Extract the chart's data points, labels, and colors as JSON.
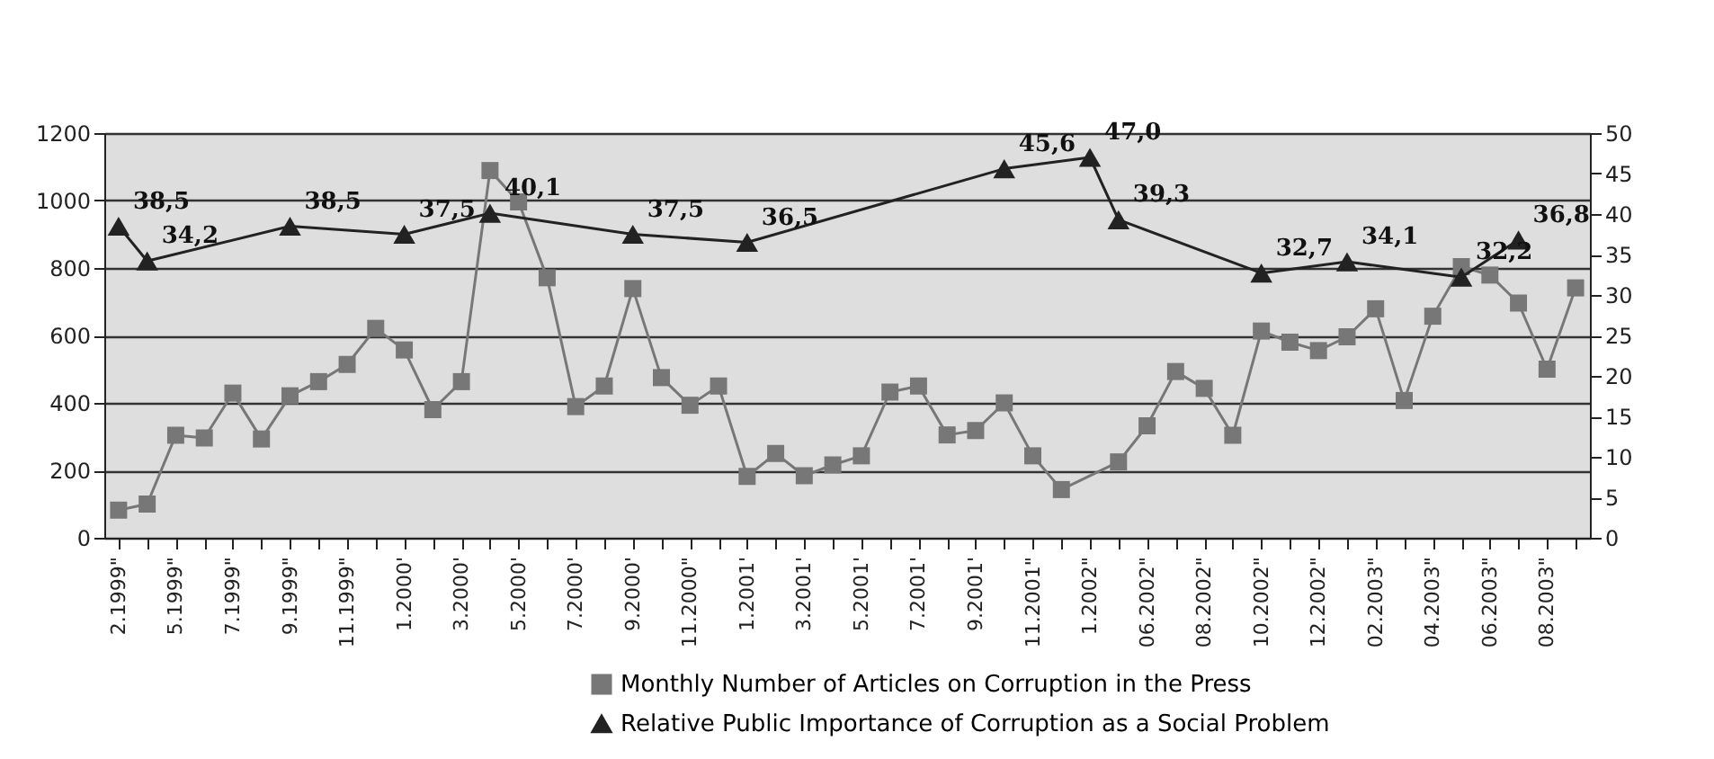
{
  "chart_data": {
    "type": "line",
    "categories": [
      "2.1999\"",
      null,
      "5.1999\"",
      null,
      "7.1999\"",
      null,
      "9.1999\"",
      null,
      "11.1999\"",
      null,
      "1.2000'",
      null,
      "3.2000'",
      null,
      "5.2000'",
      null,
      "7.2000'",
      null,
      "9.2000'",
      null,
      "11.2000\"",
      null,
      "1.2001'",
      null,
      "3.2001'",
      null,
      "5.2001'",
      null,
      "7.2001'",
      null,
      "9.2001'",
      null,
      "11.2001\"",
      null,
      "1.2002\"",
      null,
      "06.2002\"",
      null,
      "08.2002\"",
      null,
      "10.2002\"",
      null,
      "12.2002\"",
      null,
      "02.2003\"",
      null,
      "04.2003\"",
      null,
      "06.2003\"",
      null,
      "08.2003\"",
      null
    ],
    "series": [
      {
        "name": "Monthly Number of Articles on Corruption in the Press",
        "color": "#777777",
        "marker": "square",
        "values": [
          82,
          100,
          304,
          296,
          429,
          293,
          421,
          463,
          514,
          621,
          557,
          380,
          463,
          1089,
          996,
          771,
          389,
          450,
          739,
          475,
          393,
          450,
          182,
          250,
          184,
          216,
          243,
          432,
          450,
          305,
          318,
          400,
          243,
          143,
          null,
          225,
          332,
          493,
          443,
          304,
          613,
          580,
          555,
          596,
          679,
          407,
          657,
          804,
          779,
          696,
          500,
          741
        ]
      },
      {
        "name": "Relative Public Importance of Corruption as a Social Problem",
        "color": "#222222",
        "marker": "triangle",
        "axis": "y2",
        "values": [
          38.5,
          34.2,
          null,
          null,
          null,
          null,
          38.5,
          null,
          null,
          null,
          37.5,
          null,
          null,
          40.1,
          null,
          null,
          null,
          null,
          37.5,
          null,
          null,
          null,
          36.5,
          null,
          null,
          null,
          null,
          null,
          null,
          null,
          null,
          45.6,
          null,
          null,
          47.0,
          39.3,
          null,
          null,
          null,
          null,
          32.7,
          null,
          null,
          34.1,
          null,
          null,
          null,
          32.2,
          null,
          36.8,
          null,
          null
        ],
        "value_labels": [
          "38,5",
          "34,2",
          null,
          null,
          null,
          null,
          "38,5",
          null,
          null,
          null,
          "37,5",
          null,
          null,
          "40,1",
          null,
          null,
          null,
          null,
          "37,5",
          null,
          null,
          null,
          "36,5",
          null,
          null,
          null,
          null,
          null,
          null,
          null,
          null,
          "45,6",
          null,
          null,
          "47,0",
          "39,3",
          null,
          null,
          null,
          null,
          "32,7",
          null,
          null,
          "34,1",
          null,
          null,
          null,
          "32,2",
          null,
          "36,8",
          null,
          null
        ]
      }
    ],
    "ylim": [
      0,
      1200
    ],
    "yticks": [
      0,
      200,
      400,
      600,
      800,
      1000,
      1200
    ],
    "y2lim": [
      0,
      50
    ],
    "y2ticks": [
      0,
      5,
      10,
      15,
      20,
      25,
      30,
      35,
      40,
      45,
      50
    ],
    "grid": "y",
    "legend": "bottom"
  }
}
